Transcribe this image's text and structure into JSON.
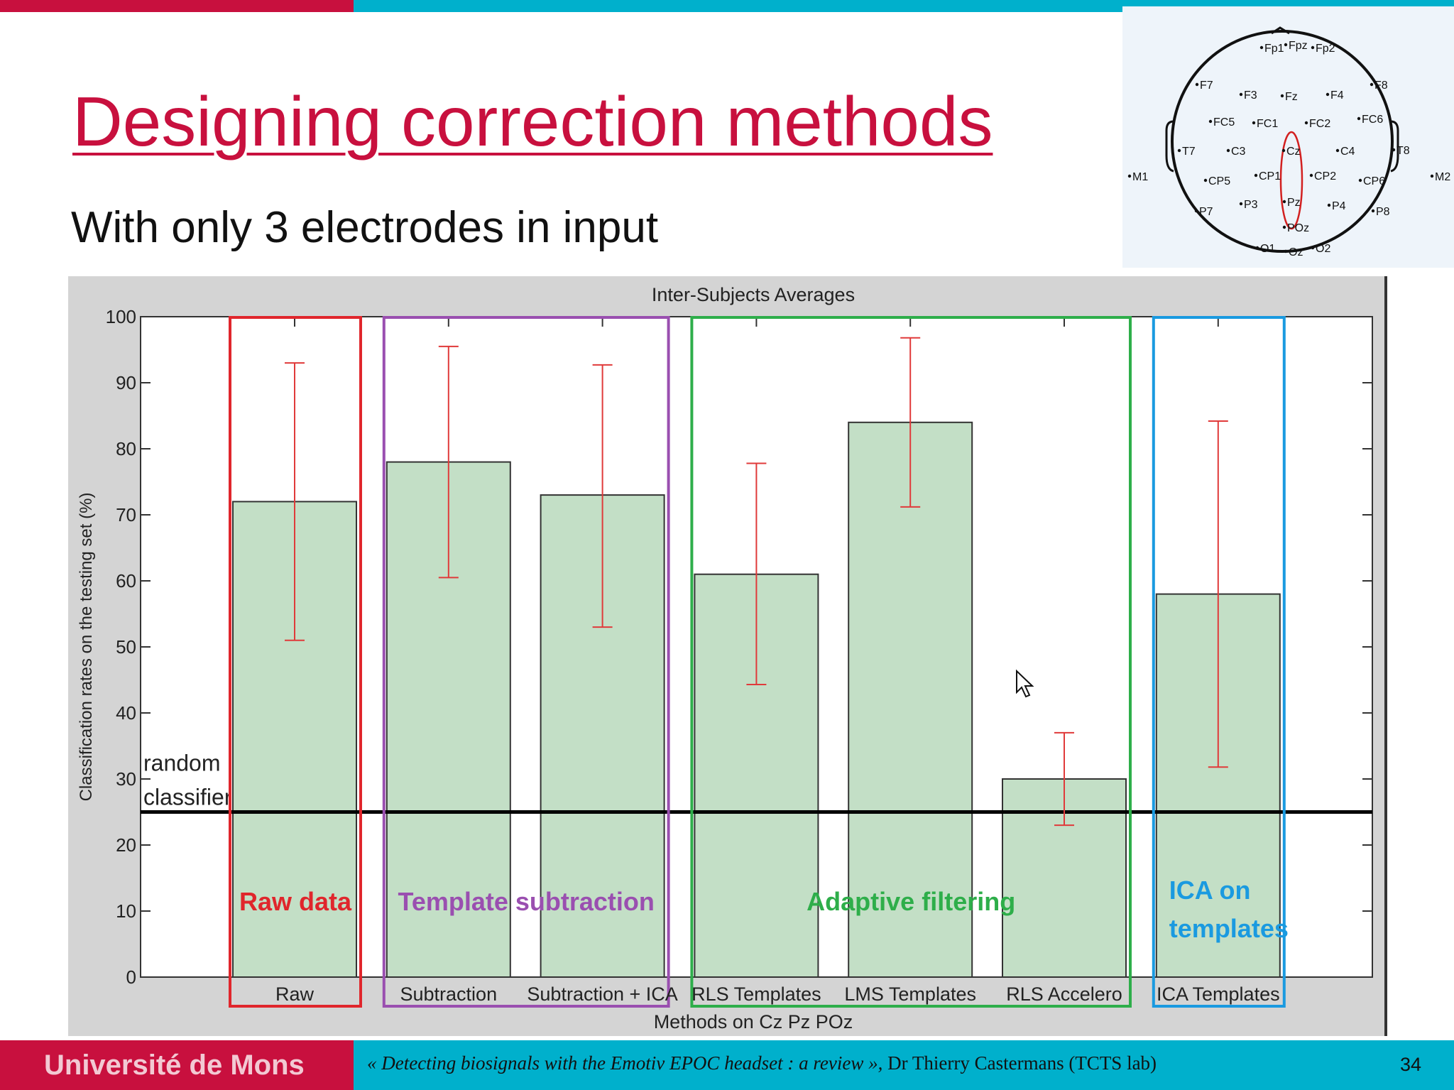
{
  "slide": {
    "title": "Designing correction methods",
    "subtitle": "With only 3 electrodes in input",
    "page_number": "34"
  },
  "footer": {
    "university": "Université de Mons",
    "citation_italic": "« Detecting biosignals with the Emotiv EPOC headset : a review »,",
    "citation_author": " Dr Thierry Castermans (TCTS lab)"
  },
  "head_map": {
    "electrodes": [
      "Fp1",
      "Fpz",
      "Fp2",
      "F7",
      "F3",
      "Fz",
      "F4",
      "F8",
      "FC5",
      "FC1",
      "FC2",
      "FC6",
      "T7",
      "C3",
      "Cz",
      "C4",
      "T8",
      "M1",
      "CP5",
      "CP1",
      "CP2",
      "CP6",
      "M2",
      "P7",
      "P3",
      "Pz",
      "P4",
      "P8",
      "POz",
      "O1",
      "Oz",
      "O2"
    ],
    "highlight_color": "#d22020"
  },
  "chart_data": {
    "type": "bar",
    "title": "Inter-Subjects Averages",
    "xlabel": "Methods on Cz Pz POz",
    "ylabel": "Classification rates on the testing set (%)",
    "ylim": [
      0,
      100
    ],
    "yticks": [
      0,
      10,
      20,
      30,
      40,
      50,
      60,
      70,
      80,
      90,
      100
    ],
    "categories": [
      "Raw",
      "Subtraction",
      "Subtraction + ICA",
      "RLS Templates",
      "LMS Templates",
      "RLS Accelero",
      "ICA Templates"
    ],
    "values": [
      72,
      78,
      73,
      61,
      84,
      30,
      58
    ],
    "error_low": [
      51,
      60.5,
      53,
      44.3,
      71.2,
      23,
      31.8
    ],
    "error_high": [
      93,
      95.5,
      92.7,
      77.8,
      96.8,
      37,
      84.2
    ],
    "bar_color": "#c3dfc6",
    "error_color": "#e03a3a",
    "random_classifier": {
      "value": 25,
      "label_line1": "random",
      "label_line2": "classifier"
    },
    "groups": [
      {
        "label": "Raw data",
        "start": 0,
        "end": 0,
        "color": "#e0262c"
      },
      {
        "label": "Template subtraction",
        "start": 1,
        "end": 2,
        "color": "#9a4fb0"
      },
      {
        "label": "Adaptive filtering",
        "start": 3,
        "end": 5,
        "color": "#2eae4a"
      },
      {
        "label_line1": "ICA on",
        "label_line2": "templates",
        "start": 6,
        "end": 6,
        "color": "#1a9ae0"
      }
    ]
  }
}
